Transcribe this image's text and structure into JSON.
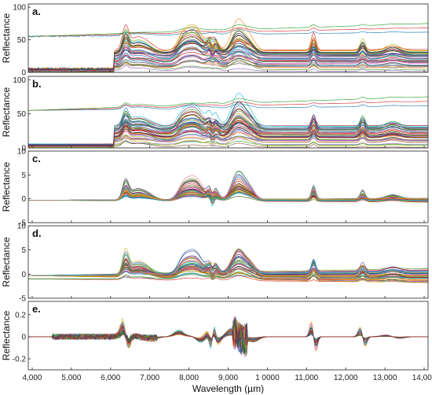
{
  "chart_data": {
    "type": "line",
    "xlabel": "Wavelength (µm)",
    "x_ticks": [
      "4,000",
      "5,000",
      "6,000",
      "7,000",
      "8,000",
      "9,000",
      "1 0000",
      "11,000",
      "12,000",
      "13,000",
      "14,000"
    ],
    "xlim": [
      3900,
      14100
    ],
    "panels": [
      {
        "id": "a",
        "label": "a.",
        "ylabel": "Reflectance",
        "ylim": [
          0,
          105
        ],
        "y_ticks": [
          "0",
          "50",
          "100"
        ],
        "y_tick_values": [
          0,
          50,
          100
        ],
        "kind": "raw",
        "series_count": 45
      },
      {
        "id": "b",
        "label": "b.",
        "ylabel": "Reflectance",
        "ylim": [
          0,
          105
        ],
        "y_ticks": [
          "0",
          "50",
          "100"
        ],
        "y_tick_values": [
          0,
          50,
          100
        ],
        "kind": "smoothed",
        "series_count": 45
      },
      {
        "id": "c",
        "label": "c.",
        "ylabel": "Reflectance",
        "ylim": [
          -5,
          10
        ],
        "y_ticks": [
          "-5",
          "0",
          "5",
          "10"
        ],
        "y_tick_values": [
          -5,
          0,
          5,
          10
        ],
        "kind": "baseline",
        "series_count": 40
      },
      {
        "id": "d",
        "label": "d.",
        "ylabel": "Reflectance",
        "ylim": [
          -5,
          10
        ],
        "y_ticks": [
          "-5",
          "0",
          "5",
          "10"
        ],
        "y_tick_values": [
          -5,
          0,
          5,
          10
        ],
        "kind": "normalized",
        "series_count": 40
      },
      {
        "id": "e",
        "label": "e.",
        "ylabel": "Reflectance",
        "ylim": [
          -0.3,
          0.32
        ],
        "y_ticks": [
          "-0.2",
          "0",
          "0.2"
        ],
        "y_tick_values": [
          -0.2,
          0,
          0.2
        ],
        "kind": "derivative",
        "series_count": 30
      }
    ],
    "peaks_um": [
      6400,
      8100,
      8700,
      9300,
      11200,
      12400
    ],
    "grid": false,
    "legend": "none"
  },
  "colors": [
    "#1f77b4",
    "#d62728",
    "#2ca02c",
    "#9467bd",
    "#8c564b",
    "#e377c2",
    "#17becf",
    "#bcbd22",
    "#ff7f0e",
    "#7f7f7f",
    "#003f7f",
    "#6a3d9a",
    "#444444",
    "#4d9221",
    "#b2182b"
  ]
}
